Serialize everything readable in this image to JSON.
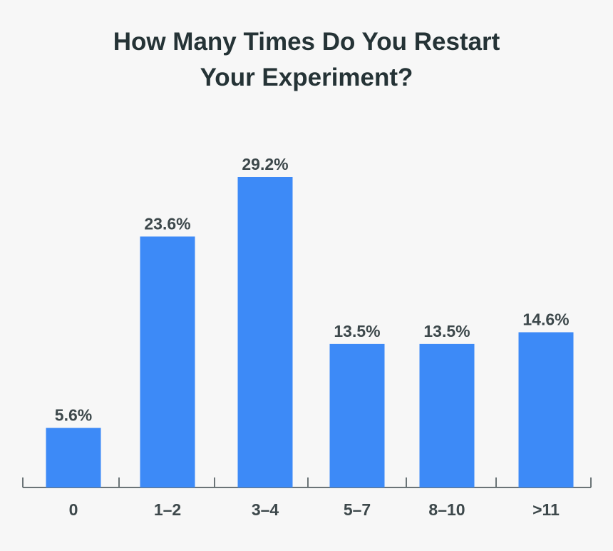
{
  "chart_data": {
    "type": "bar",
    "title_line1": "How Many Times Do You Restart",
    "title_line2": "Your Experiment?",
    "categories": [
      "0",
      "1–2",
      "3–4",
      "5–7",
      "8–10",
      ">11"
    ],
    "values": [
      5.6,
      23.6,
      29.2,
      13.5,
      13.5,
      14.6
    ],
    "value_labels": [
      "5.6%",
      "23.6%",
      "29.2%",
      "13.5%",
      "13.5%",
      "14.6%"
    ],
    "ylim": [
      0,
      29.2
    ],
    "grid": false,
    "bar_color": "#3d8af7",
    "axis_color": "#6b7477"
  }
}
